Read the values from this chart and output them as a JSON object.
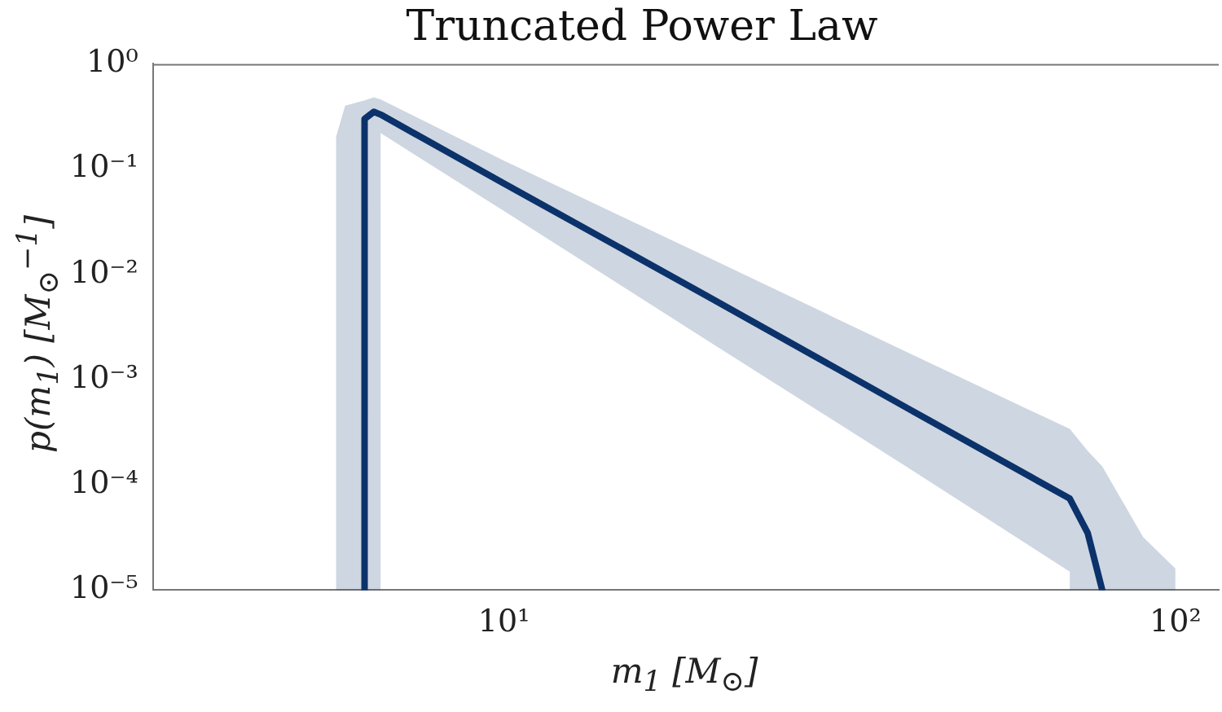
{
  "chart_data": {
    "type": "line",
    "title": "Truncated Power Law",
    "xlabel": "m$_{1}$ [M$_{⊙}$]",
    "ylabel": "p(m$_{1}$) [M$_{⊙}$$^{−1}$]",
    "log": "xy",
    "grid": false,
    "legend": false,
    "marker": "none",
    "line_style": "solid",
    "xlim": [
      3,
      116
    ],
    "xticks": [
      {
        "value": 10,
        "label": "10¹"
      },
      {
        "value": 100,
        "label": "10²"
      }
    ],
    "ylim": [
      1e-05,
      1
    ],
    "yticks": [
      {
        "value": 1,
        "label": "10⁰"
      },
      {
        "value": 0.1,
        "label": "10⁻¹"
      },
      {
        "value": 0.01,
        "label": "10⁻²"
      },
      {
        "value": 0.001,
        "label": "10⁻³"
      },
      {
        "value": 0.0001,
        "label": "10⁻⁴"
      },
      {
        "value": 1e-05,
        "label": "10⁻⁵"
      }
    ],
    "series": [
      {
        "color": "#0c336b",
        "x": [
          5.62,
          5.8,
          6.2,
          6.2,
          6.4,
          6.55,
          6.55,
          10,
          20,
          40,
          69.6,
          69.6,
          74,
          77.8,
          89.5,
          100
        ],
        "values": [
          null,
          null,
          1e-05,
          0.3,
          0.35,
          0.33,
          0.33,
          0.073,
          0.0063,
          0.00053,
          7.4e-05,
          7.4e-05,
          3.5e-05,
          1e-05,
          null,
          null
        ],
        "lower": [
          1e-05,
          1e-05,
          1e-05,
          1e-05,
          1e-05,
          1e-05,
          0.22,
          0.04,
          0.0024,
          0.000145,
          1.5e-05,
          1e-05,
          1e-05,
          1e-05,
          1e-05,
          1e-05
        ],
        "upper": [
          0.2,
          0.4,
          0.45,
          0.45,
          0.48,
          0.46,
          0.46,
          0.12,
          0.0148,
          0.0018,
          0.00034,
          0.00034,
          0.00021,
          0.00015,
          3.2e-05,
          1.6e-05
        ]
      }
    ]
  }
}
